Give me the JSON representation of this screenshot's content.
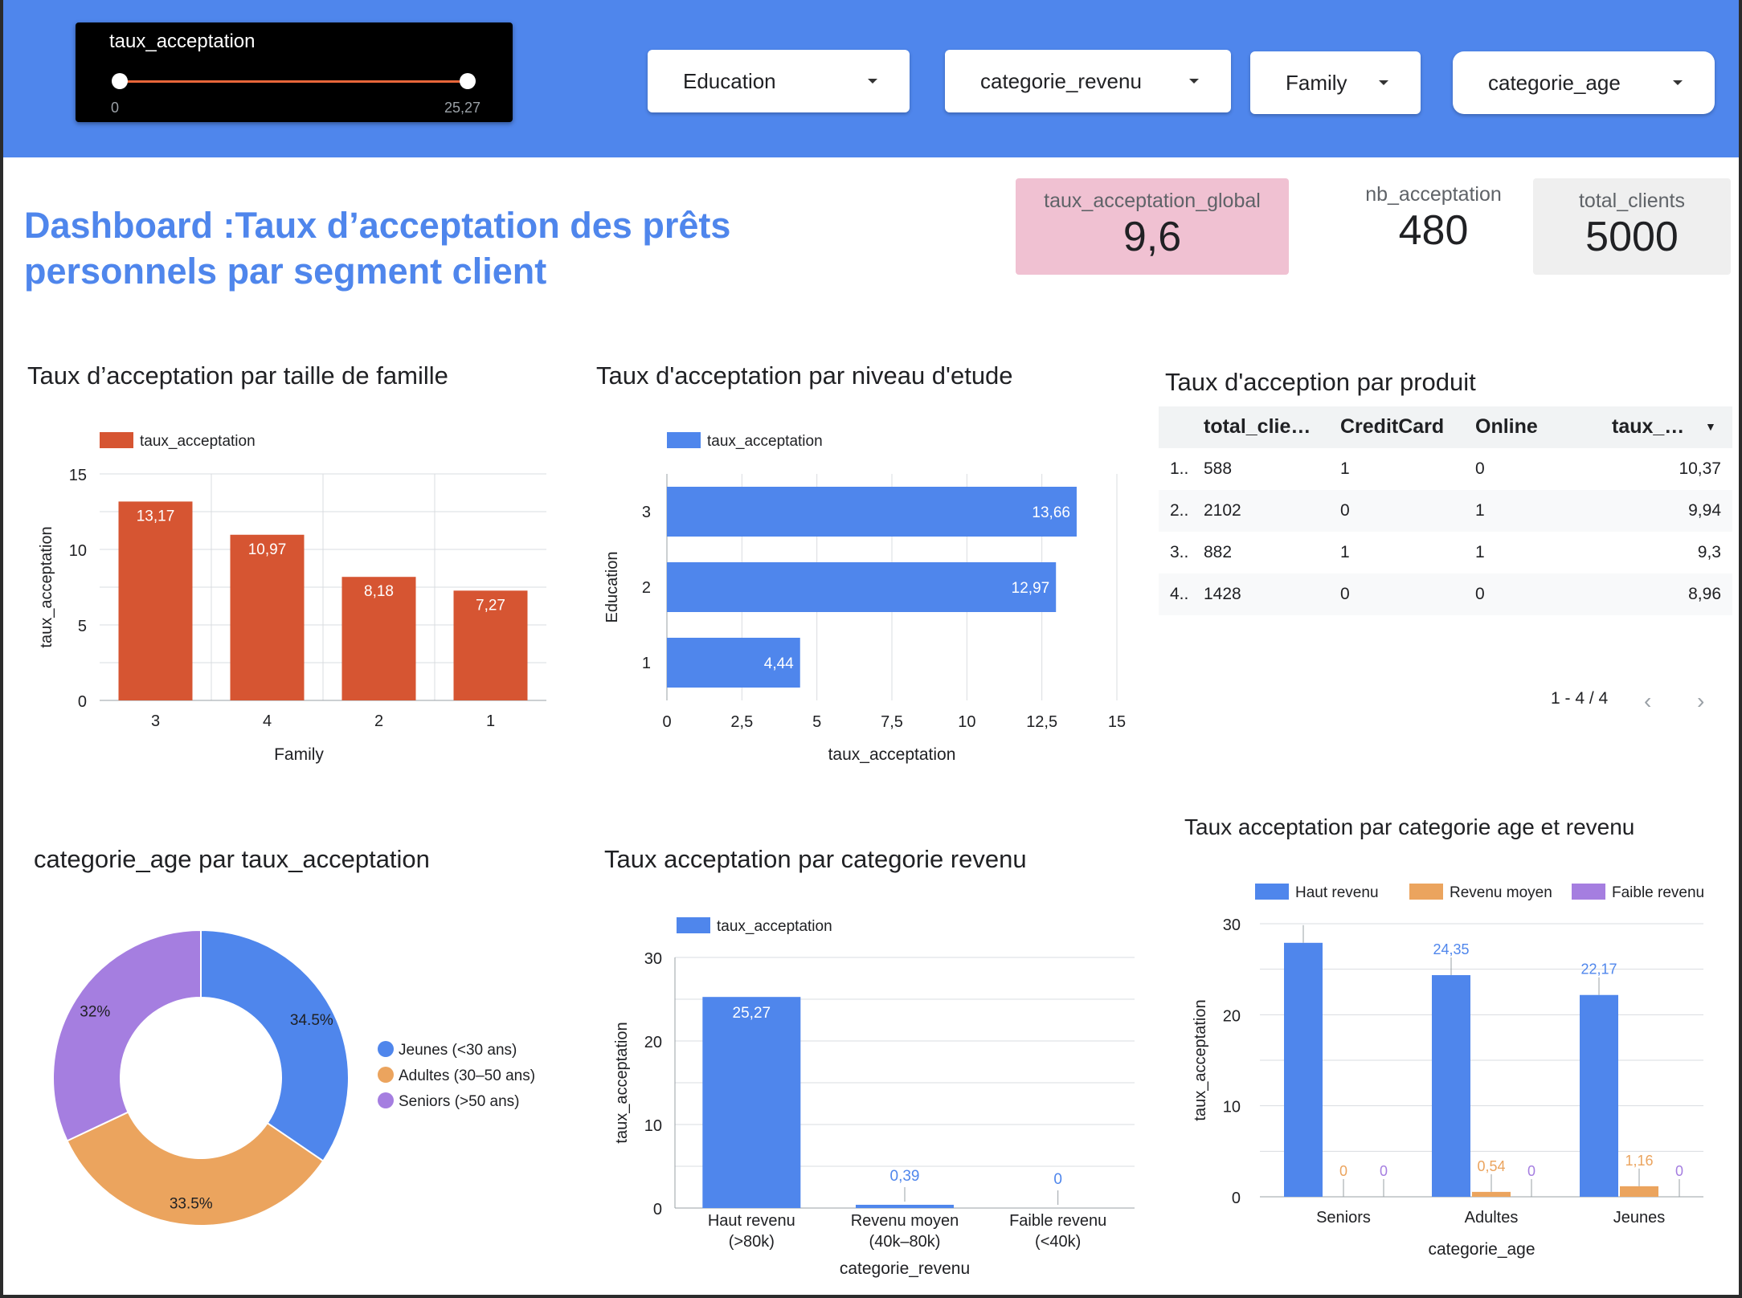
{
  "filters": {
    "slider": {
      "label": "taux_acceptation",
      "min": "0",
      "max": "25,27"
    },
    "dropdowns": [
      "Education",
      "categorie_revenu",
      "Family",
      "categorie_age"
    ]
  },
  "title": "Dashboard :Taux d’acceptation des prêts personnels par segment client",
  "kpis": [
    {
      "label": "taux_acceptation_global",
      "value": "9,6"
    },
    {
      "label": "nb_acceptation",
      "value": "480"
    },
    {
      "label": "total_clients",
      "value": "5000"
    }
  ],
  "charts": {
    "family": {
      "title": "Taux d’acceptation par taille de famille"
    },
    "education": {
      "title": "Taux d'acceptation par niveau d'etude"
    },
    "produit": {
      "title": "Taux d'acception par produit"
    },
    "age_pie": {
      "title": "categorie_age par taux_acceptation"
    },
    "revenu": {
      "title": "Taux acceptation par categorie revenu"
    },
    "age_revenu": {
      "title": "Taux acceptation par categorie age et revenu"
    }
  },
  "table": {
    "columns": [
      "total_clie…",
      "CreditCard",
      "Online",
      "taux_…"
    ],
    "rows": [
      [
        "1..",
        "588",
        "1",
        "0",
        "10,37"
      ],
      [
        "2..",
        "2102",
        "0",
        "1",
        "9,94"
      ],
      [
        "3..",
        "882",
        "1",
        "1",
        "9,3"
      ],
      [
        "4..",
        "1428",
        "0",
        "0",
        "8,96"
      ]
    ],
    "pager": "1 - 4 / 4"
  },
  "chart_data": [
    {
      "type": "bar",
      "categories": [
        "3",
        "4",
        "2",
        "1"
      ],
      "values": [
        13.17,
        10.97,
        8.18,
        7.27
      ],
      "value_labels": [
        "13,17",
        "10,97",
        "8,18",
        "7,27"
      ],
      "series_name": "taux_acceptation",
      "xlabel": "Family",
      "ylabel": "taux_acceptation",
      "ylim": [
        0,
        15
      ],
      "yticks": [
        "0",
        "5",
        "10",
        "15"
      ],
      "color": "#d65532",
      "legend": "top-left",
      "grid": true
    },
    {
      "type": "bar",
      "orientation": "horizontal",
      "categories": [
        "3",
        "2",
        "1"
      ],
      "values": [
        13.66,
        12.97,
        4.44
      ],
      "value_labels": [
        "13,66",
        "12,97",
        "4,44"
      ],
      "series_name": "taux_acceptation",
      "xlabel": "taux_acceptation",
      "ylabel": "Education",
      "xlim": [
        0,
        15
      ],
      "xticks": [
        "0",
        "2,5",
        "5",
        "7,5",
        "10",
        "12,5",
        "15"
      ],
      "color": "#4f86ec",
      "legend": "top-left",
      "grid": true
    },
    {
      "type": "pie",
      "donut": true,
      "labels": [
        "Jeunes (<30 ans)",
        "Adultes (30–50 ans)",
        "Seniors (>50 ans)"
      ],
      "values": [
        34.5,
        33.5,
        32
      ],
      "value_labels": [
        "34.5%",
        "33.5%",
        "32%"
      ],
      "colors": [
        "#4f86ec",
        "#eba45e",
        "#a57ee0"
      ],
      "legend": "right"
    },
    {
      "type": "bar",
      "categories": [
        [
          "Haut revenu",
          "(>80k)"
        ],
        [
          "Revenu moyen",
          "(40k–80k)"
        ],
        [
          "Faible revenu",
          "(<40k)"
        ]
      ],
      "values": [
        25.27,
        0.39,
        0
      ],
      "value_labels": [
        "25,27",
        "0,39",
        "0"
      ],
      "series_name": "taux_acceptation",
      "xlabel": "categorie_revenu",
      "ylabel": "taux_acceptation",
      "ylim": [
        0,
        30
      ],
      "yticks": [
        "0",
        "10",
        "20",
        "30"
      ],
      "color": "#4f86ec",
      "legend": "top-left",
      "grid": true
    },
    {
      "type": "bar",
      "categories": [
        "Seniors",
        "Adultes",
        "Jeunes"
      ],
      "series": [
        {
          "name": "Haut revenu",
          "values": [
            27.9,
            24.35,
            22.17
          ],
          "value_labels": [
            "",
            "24,35",
            "22,17"
          ],
          "color": "#4f86ec"
        },
        {
          "name": "Revenu moyen",
          "values": [
            0,
            0.54,
            1.16
          ],
          "value_labels": [
            "0",
            "0,54",
            "1,16"
          ],
          "color": "#eba45e"
        },
        {
          "name": "Faible revenu",
          "values": [
            0,
            0,
            0
          ],
          "value_labels": [
            "0",
            "0",
            "0"
          ],
          "color": "#a57ee0"
        }
      ],
      "xlabel": "categorie_age",
      "ylabel": "taux_acceptation",
      "ylim": [
        0,
        30
      ],
      "yticks": [
        "0",
        "10",
        "20",
        "30"
      ],
      "legend": "top",
      "grid": true
    }
  ]
}
